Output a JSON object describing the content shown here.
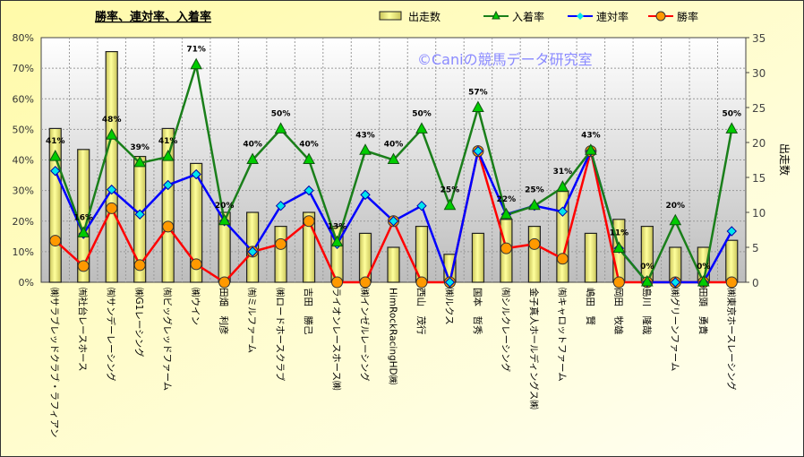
{
  "chart_data": {
    "type": "bar+line",
    "title": "勝率、連対率、入着率",
    "watermark": "©Caniの競馬データ研究室",
    "ylabel_right": "出走数",
    "ylim_left": [
      0,
      80
    ],
    "ylim_right": [
      0,
      35
    ],
    "left_ticks": [
      "0%",
      "10%",
      "20%",
      "30%",
      "40%",
      "50%",
      "60%",
      "70%",
      "80%"
    ],
    "right_ticks": [
      "0",
      "5",
      "10",
      "15",
      "20",
      "25",
      "30",
      "35"
    ],
    "legend": {
      "placement": "top-right",
      "entries": [
        "出走数",
        "入着率",
        "連対率",
        "勝率"
      ]
    },
    "categories": [
      "㈱サラブレッドクラブ・ラフィアン",
      "㈲社台レースホース",
      "㈲サンデーレーシング",
      "㈱G1レーシング",
      "㈲ビッグレッドファーム",
      "㈱ウイン",
      "田畑　利彦",
      "㈲ミルファーム",
      "㈱ロードホースクラブ",
      "吉田　勝己",
      "ライオンレースホース㈱",
      "㈱インゼルレーシング",
      "HimRockRacingHD㈱",
      "西山　茂行",
      "㈱ルクス",
      "国本　哲秀",
      "㈲シルクレーシング",
      "金子真人ホールディングス㈱",
      "㈲キャロットファーム",
      "嶋田　賢",
      "岡田　牧雄",
      "島川　隆哉",
      "㈱グリーンファーム",
      "田頭　勇貴",
      "㈱東京ホースレーシング"
    ],
    "series": [
      {
        "name": "出走数",
        "axis": "right",
        "type": "bar",
        "color": "#f4ef8c",
        "values": [
          22,
          19,
          33,
          18,
          22,
          17,
          10,
          10,
          8,
          10,
          8,
          7,
          5,
          8,
          4,
          7,
          9,
          8,
          13,
          7,
          9,
          8,
          5,
          5,
          6
        ]
      },
      {
        "name": "入着率",
        "axis": "left",
        "type": "line",
        "color": "#1a7f1a",
        "marker_color": "#00cc00",
        "values": [
          41,
          16,
          48,
          39,
          41,
          71,
          20,
          40,
          50,
          40,
          13,
          43,
          40,
          50,
          25,
          57,
          22,
          25,
          31,
          43,
          11,
          0,
          20,
          0,
          50
        ],
        "labels": [
          "41%",
          "16%",
          "48%",
          "39%",
          "41%",
          "71%",
          "20%",
          "40%",
          "50%",
          "40%",
          "13%",
          "43%",
          "40%",
          "50%",
          "25%",
          "57%",
          "22%",
          "25%",
          "31%",
          "43%",
          "11%",
          "0%",
          "20%",
          "0%",
          "50%"
        ]
      },
      {
        "name": "連対率",
        "axis": "left",
        "type": "line",
        "color": "#0000ff",
        "marker_color": "#00e5ee",
        "values": [
          36.4,
          15.8,
          30.3,
          22.2,
          31.8,
          35.3,
          20,
          10,
          25,
          30,
          12.5,
          28.6,
          20,
          25,
          0,
          42.9,
          22.2,
          25,
          23.1,
          42.9,
          11.1,
          0,
          0,
          0,
          16.7
        ]
      },
      {
        "name": "勝率",
        "axis": "left",
        "type": "line",
        "color": "#ff0000",
        "marker_color": "#ff9900",
        "values": [
          13.6,
          5.3,
          24.2,
          5.6,
          18.2,
          5.9,
          0,
          10,
          12.5,
          20,
          0,
          0,
          20,
          0,
          0,
          42.9,
          11.1,
          12.5,
          7.7,
          42.9,
          0,
          0,
          0,
          0,
          0
        ]
      }
    ]
  }
}
